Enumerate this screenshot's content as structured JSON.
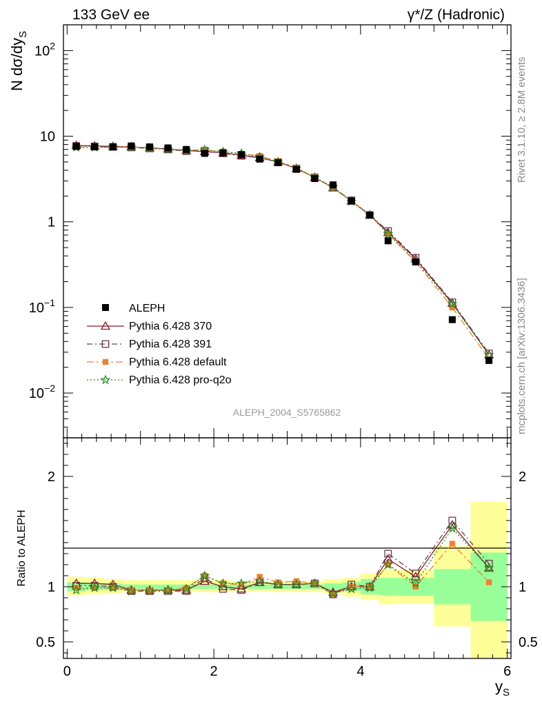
{
  "header": {
    "left": "133 GeV ee",
    "right": "γ*/Z (Hadronic)"
  },
  "side_labels": {
    "rivet": "Rivet 3.1.10, ≥ 2.8M events",
    "mcplots": "mcplots.cern.ch [arXiv:1306.3436]"
  },
  "analysis_id": "ALEPH_2004_S5765862",
  "chart_data": [
    {
      "type": "line",
      "panel": "main",
      "ylabel": "N dσ/dy_S",
      "yscale": "log",
      "ylim": [
        0.003,
        200
      ],
      "xlim": [
        -0.05,
        6.05
      ],
      "y_ticks": [
        {
          "v": 100,
          "b": "10",
          "e": "2"
        },
        {
          "v": 10,
          "b": "10",
          "e": ""
        },
        {
          "v": 1,
          "b": "1",
          "e": ""
        },
        {
          "v": 0.1,
          "b": "10",
          "e": "−1"
        },
        {
          "v": 0.01,
          "b": "10",
          "e": "−2"
        }
      ],
      "x": [
        0.125,
        0.375,
        0.625,
        0.875,
        1.125,
        1.375,
        1.625,
        1.875,
        2.125,
        2.375,
        2.625,
        2.875,
        3.125,
        3.375,
        3.625,
        3.875,
        4.125,
        4.375,
        4.75,
        5.25,
        5.75
      ],
      "data": {
        "name": "ALEPH",
        "values": [
          7.6,
          7.5,
          7.5,
          7.7,
          7.5,
          7.3,
          7.0,
          6.3,
          6.4,
          6.1,
          5.4,
          4.9,
          4.1,
          3.2,
          2.7,
          1.75,
          1.2,
          0.6,
          0.34,
          0.072,
          0.024
        ]
      },
      "series": [
        {
          "name": "Pythia 6.428 370",
          "color": "#8b1a2b",
          "dash": "",
          "marker": "triangle-open",
          "values": [
            7.8,
            7.7,
            7.6,
            7.5,
            7.3,
            7.1,
            6.8,
            6.6,
            6.4,
            6.0,
            5.6,
            5.0,
            4.2,
            3.3,
            2.5,
            1.75,
            1.2,
            0.75,
            0.37,
            0.112,
            0.028
          ]
        },
        {
          "name": "Pythia 6.428 391",
          "color": "#6b3a50",
          "dash": "8,4,2,4",
          "marker": "square-open",
          "values": [
            7.7,
            7.6,
            7.5,
            7.4,
            7.2,
            7.0,
            6.7,
            6.8,
            6.3,
            5.9,
            5.6,
            5.0,
            4.2,
            3.3,
            2.5,
            1.78,
            1.2,
            0.78,
            0.38,
            0.115,
            0.029
          ]
        },
        {
          "name": "Pythia 6.428 default",
          "color": "#f08030",
          "dash": "10,4,3,4",
          "marker": "square-filled",
          "values": [
            7.5,
            7.4,
            7.4,
            7.5,
            7.3,
            7.1,
            6.9,
            6.9,
            6.6,
            6.2,
            5.9,
            5.1,
            4.3,
            3.3,
            2.5,
            1.75,
            1.2,
            0.72,
            0.34,
            0.1,
            0.025
          ]
        },
        {
          "name": "Pythia 6.428 pro-q2o",
          "color": "#1a8a1a",
          "dash": "2,3",
          "marker": "star",
          "values": [
            7.4,
            7.4,
            7.5,
            7.4,
            7.2,
            7.0,
            6.8,
            6.9,
            6.6,
            6.3,
            5.7,
            5.0,
            4.2,
            3.3,
            2.55,
            1.72,
            1.2,
            0.72,
            0.35,
            0.11,
            0.028
          ]
        }
      ]
    },
    {
      "type": "line",
      "panel": "ratio",
      "xlabel": "y_S",
      "ylabel": "Ratio to ALEPH",
      "ylim": [
        0.35,
        2.35
      ],
      "xlim": [
        -0.05,
        6.05
      ],
      "x_ticks": [
        "0",
        "2",
        "4",
        "6"
      ],
      "y_ticks": [
        "0.5",
        "1",
        "2"
      ],
      "bins": [
        [
          0,
          0.25
        ],
        [
          0.25,
          0.5
        ],
        [
          0.5,
          0.75
        ],
        [
          0.75,
          1.0
        ],
        [
          1.0,
          1.25
        ],
        [
          1.25,
          1.5
        ],
        [
          1.5,
          1.75
        ],
        [
          1.75,
          2.0
        ],
        [
          2.0,
          2.25
        ],
        [
          2.25,
          2.5
        ],
        [
          2.5,
          2.75
        ],
        [
          2.75,
          3.0
        ],
        [
          3.0,
          3.25
        ],
        [
          3.25,
          3.5
        ],
        [
          3.5,
          3.75
        ],
        [
          3.75,
          4.0
        ],
        [
          4.0,
          4.25
        ],
        [
          4.25,
          4.5
        ],
        [
          4.5,
          5.0
        ],
        [
          5.0,
          5.5
        ],
        [
          5.5,
          6.0
        ]
      ],
      "band_green": [
        [
          0.96,
          1.04
        ],
        [
          0.97,
          1.03
        ],
        [
          0.97,
          1.03
        ],
        [
          0.98,
          1.02
        ],
        [
          0.98,
          1.02
        ],
        [
          0.98,
          1.02
        ],
        [
          0.98,
          1.02
        ],
        [
          0.98,
          1.02
        ],
        [
          0.98,
          1.02
        ],
        [
          0.98,
          1.02
        ],
        [
          0.98,
          1.02
        ],
        [
          0.98,
          1.02
        ],
        [
          0.98,
          1.02
        ],
        [
          0.98,
          1.02
        ],
        [
          0.97,
          1.03
        ],
        [
          0.96,
          1.04
        ],
        [
          0.93,
          1.07
        ],
        [
          0.92,
          1.08
        ],
        [
          0.92,
          1.08
        ],
        [
          0.84,
          1.16
        ],
        [
          0.69,
          1.31
        ]
      ],
      "band_yellow": [
        [
          0.92,
          1.09
        ],
        [
          0.93,
          1.08
        ],
        [
          0.94,
          1.07
        ],
        [
          0.95,
          1.06
        ],
        [
          0.95,
          1.06
        ],
        [
          0.95,
          1.06
        ],
        [
          0.95,
          1.06
        ],
        [
          0.95,
          1.06
        ],
        [
          0.95,
          1.06
        ],
        [
          0.95,
          1.05
        ],
        [
          0.96,
          1.05
        ],
        [
          0.95,
          1.05
        ],
        [
          0.95,
          1.05
        ],
        [
          0.95,
          1.05
        ],
        [
          0.94,
          1.07
        ],
        [
          0.91,
          1.08
        ],
        [
          0.88,
          1.12
        ],
        [
          0.84,
          1.16
        ],
        [
          0.85,
          1.15
        ],
        [
          0.64,
          1.37
        ],
        [
          0.35,
          1.77
        ]
      ],
      "series": [
        {
          "name": "Pythia 6.428 370",
          "values": [
            1.03,
            1.03,
            1.02,
            0.97,
            0.97,
            0.97,
            0.97,
            1.05,
            1.0,
            0.98,
            1.04,
            1.02,
            1.02,
            1.03,
            0.95,
            1.0,
            1.0,
            1.25,
            1.09,
            1.56,
            1.17
          ]
        },
        {
          "name": "Pythia 6.428 391",
          "values": [
            1.01,
            1.01,
            1.0,
            0.96,
            0.96,
            0.96,
            0.96,
            1.08,
            0.98,
            0.97,
            1.04,
            1.02,
            1.02,
            1.03,
            0.93,
            1.02,
            1.0,
            1.3,
            1.12,
            1.6,
            1.21
          ]
        },
        {
          "name": "Pythia 6.428 default",
          "values": [
            0.99,
            0.99,
            0.99,
            0.97,
            0.97,
            0.97,
            0.99,
            1.1,
            1.03,
            1.02,
            1.09,
            1.04,
            1.05,
            1.03,
            0.93,
            1.0,
            1.0,
            1.2,
            1.0,
            1.39,
            1.04
          ]
        },
        {
          "name": "Pythia 6.428 pro-q2o",
          "values": [
            0.97,
            0.99,
            0.99,
            0.96,
            0.96,
            0.97,
            0.98,
            1.1,
            1.03,
            1.03,
            1.05,
            1.02,
            1.02,
            1.03,
            0.94,
            0.98,
            0.99,
            1.2,
            1.03,
            1.53,
            1.17
          ]
        }
      ]
    }
  ]
}
